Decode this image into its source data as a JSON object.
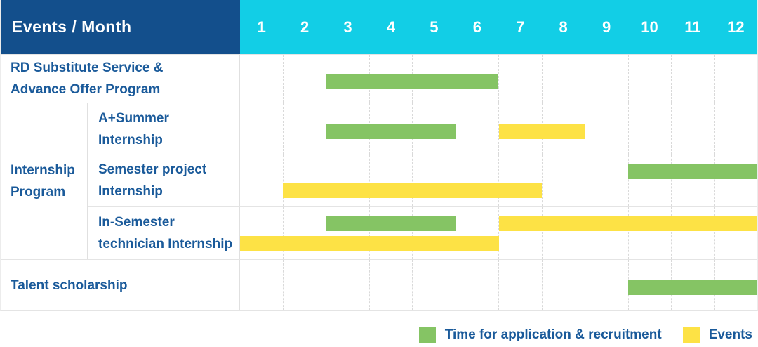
{
  "header": {
    "title": "Events / Month",
    "months": [
      "1",
      "2",
      "3",
      "4",
      "5",
      "6",
      "7",
      "8",
      "9",
      "10",
      "11",
      "12"
    ]
  },
  "colors": {
    "header_bg": "#134F8C",
    "month_header_bg": "#12CEE6",
    "green": "#85C464",
    "yellow": "#FDE245",
    "label_text": "#1A5A9A",
    "header_text": "#FFFFFF"
  },
  "legend": {
    "items": [
      {
        "name": "Time for application & recruitment",
        "color": "#85C464",
        "color_key": "green"
      },
      {
        "name": "Events",
        "color": "#FDE245",
        "color_key": "yellow"
      }
    ]
  },
  "chart_data": {
    "type": "gantt",
    "title": "Events / Month",
    "x_axis": {
      "label": "Month",
      "ticks": [
        1,
        2,
        3,
        4,
        5,
        6,
        7,
        8,
        9,
        10,
        11,
        12
      ],
      "range": [
        1,
        12
      ]
    },
    "legend": [
      {
        "name": "Time for application & recruitment",
        "color": "#85C464"
      },
      {
        "name": "Events",
        "color": "#FDE245"
      }
    ],
    "rows": [
      {
        "event": "RD Substitute Service &\nAdvance Offer Program",
        "group": null,
        "lanes": 1,
        "bars": [
          {
            "series": "Time for application & recruitment",
            "color": "green",
            "start_month": 3,
            "end_month": 6,
            "lane": 1
          }
        ]
      },
      {
        "event": "A+Summer\nInternship",
        "group": "Internship\nProgram",
        "lanes": 1,
        "bars": [
          {
            "series": "Time for application & recruitment",
            "color": "green",
            "start_month": 3,
            "end_month": 5,
            "lane": 1
          },
          {
            "series": "Events",
            "color": "yellow",
            "start_month": 7,
            "end_month": 8,
            "lane": 1
          }
        ]
      },
      {
        "event": "Semester project\nInternship",
        "group": "Internship\nProgram",
        "lanes": 2,
        "bars": [
          {
            "series": "Time for application & recruitment",
            "color": "green",
            "start_month": 10,
            "end_month": 12,
            "lane": 1
          },
          {
            "series": "Events",
            "color": "yellow",
            "start_month": 2,
            "end_month": 7,
            "lane": 2
          }
        ]
      },
      {
        "event": "In-Semester\ntechnician Internship",
        "group": "Internship\nProgram",
        "lanes": 2,
        "bars": [
          {
            "series": "Time for application & recruitment",
            "color": "green",
            "start_month": 3,
            "end_month": 5,
            "lane": 1
          },
          {
            "series": "Events",
            "color": "yellow",
            "start_month": 7,
            "end_month": 12,
            "lane": 1
          },
          {
            "series": "Events",
            "color": "yellow",
            "start_month": 1,
            "end_month": 6,
            "lane": 2
          }
        ]
      },
      {
        "event": "Talent scholarship",
        "group": null,
        "lanes": 1,
        "bars": [
          {
            "series": "Time for application & recruitment",
            "color": "green",
            "start_month": 10,
            "end_month": 12,
            "lane": 1
          }
        ]
      }
    ]
  }
}
